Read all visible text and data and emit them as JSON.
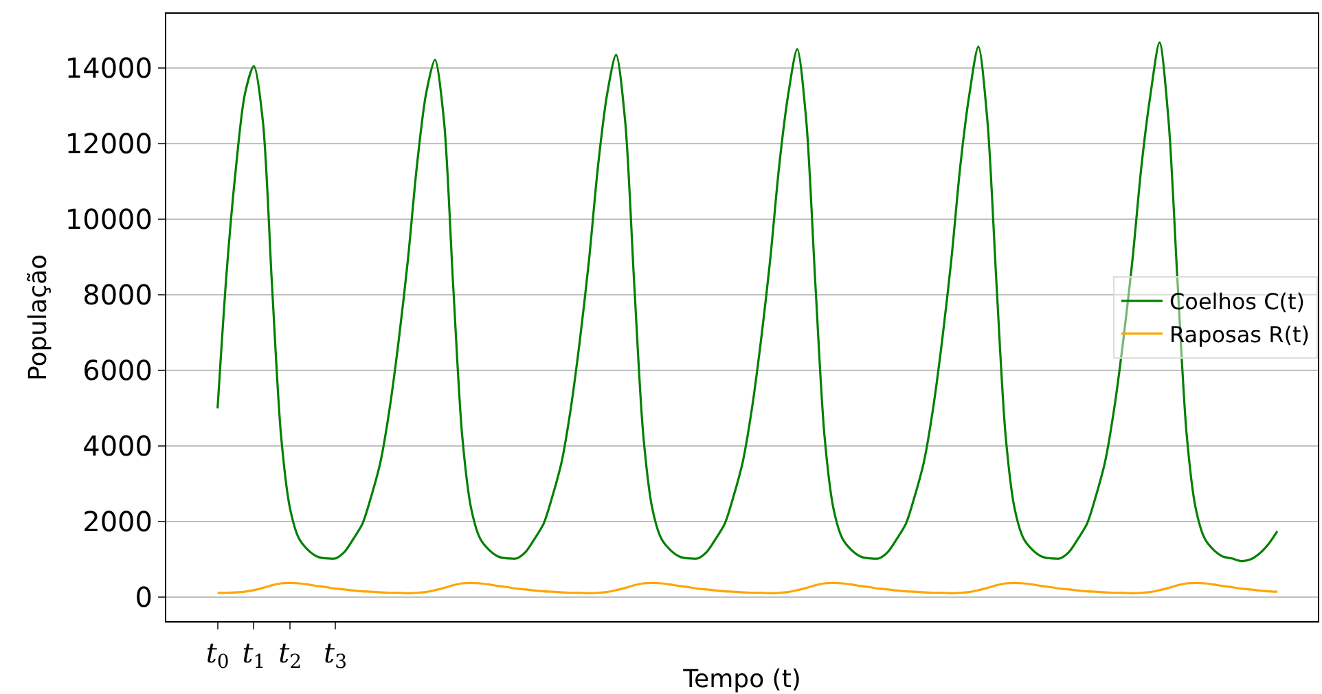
{
  "chart_data": {
    "type": "line",
    "xlabel": "Tempo (t)",
    "ylabel": "População",
    "categories": [
      "t$_{0}$",
      null,
      null,
      null,
      "t$_{1}$",
      null,
      null,
      null,
      "t$_{2}$",
      null,
      null,
      null,
      null,
      "t$_{3}$",
      null,
      null,
      null,
      null,
      null,
      null,
      null,
      null,
      null,
      null,
      null,
      null,
      null,
      null,
      null,
      null,
      null,
      null,
      null,
      null,
      null,
      null,
      null,
      null,
      null,
      null,
      null,
      null,
      null,
      null,
      null,
      null,
      null,
      null,
      null,
      null,
      null,
      null,
      null,
      null,
      null,
      null,
      null,
      null,
      null,
      null,
      null,
      null,
      null,
      null,
      null,
      null,
      null,
      null,
      null,
      null,
      null,
      null,
      null,
      null,
      null,
      null,
      null,
      null,
      null,
      null,
      null,
      null,
      null,
      null,
      null,
      null,
      null,
      null,
      null,
      null,
      null,
      null,
      null,
      null,
      null,
      null,
      null,
      null,
      null,
      null,
      null,
      null,
      null,
      null,
      null,
      null,
      null,
      null,
      null,
      null,
      null,
      null,
      null,
      null,
      null,
      null,
      null,
      null
    ],
    "ylim": [
      -630,
      15440
    ],
    "yticks": [
      0,
      2000,
      4000,
      6000,
      8000,
      10000,
      12000,
      14000
    ],
    "grid": "y",
    "legend": "right",
    "line_style": "solid",
    "marker": "none",
    "series": [
      {
        "name": "Coelhos C(t)",
        "color": "#008000",
        "values": [
          5000,
          8600,
          11300,
          13300,
          14050,
          12600,
          8300,
          4300,
          2350,
          1550,
          1250,
          1080,
          1030,
          1030,
          1200,
          1550,
          1950,
          2700,
          3600,
          5000,
          6800,
          8900,
          11400,
          13300,
          14220,
          12600,
          8300,
          4300,
          2350,
          1550,
          1250,
          1080,
          1030,
          1030,
          1200,
          1550,
          1950,
          2700,
          3600,
          5000,
          6800,
          8900,
          11400,
          13300,
          14350,
          12600,
          8300,
          4300,
          2350,
          1550,
          1250,
          1080,
          1030,
          1030,
          1200,
          1550,
          1950,
          2700,
          3600,
          5000,
          6800,
          8900,
          11400,
          13300,
          14500,
          12600,
          8300,
          4300,
          2350,
          1550,
          1250,
          1080,
          1030,
          1030,
          1200,
          1550,
          1950,
          2700,
          3600,
          5000,
          6800,
          8900,
          11400,
          13300,
          14570,
          12600,
          8300,
          4300,
          2350,
          1550,
          1250,
          1080,
          1030,
          1030,
          1200,
          1550,
          1950,
          2700,
          3600,
          5000,
          6800,
          8900,
          11400,
          13300,
          14680,
          12600,
          8300,
          4300,
          2350,
          1550,
          1250,
          1080,
          1030,
          960,
          1000,
          1150,
          1400,
          1750
        ]
      },
      {
        "name": "Raposas R(t)",
        "color": "#ffa500",
        "values": [
          120,
          120,
          130,
          150,
          190,
          250,
          320,
          370,
          380,
          370,
          340,
          300,
          270,
          230,
          210,
          180,
          160,
          150,
          130,
          120,
          120,
          110,
          120,
          140,
          190,
          250,
          320,
          370,
          380,
          370,
          340,
          300,
          270,
          230,
          210,
          180,
          160,
          150,
          130,
          120,
          120,
          110,
          120,
          140,
          190,
          250,
          320,
          370,
          380,
          370,
          340,
          300,
          270,
          230,
          210,
          180,
          160,
          150,
          130,
          120,
          120,
          110,
          120,
          140,
          190,
          250,
          320,
          370,
          380,
          370,
          340,
          300,
          270,
          230,
          210,
          180,
          160,
          150,
          130,
          120,
          120,
          110,
          120,
          140,
          190,
          250,
          320,
          370,
          380,
          370,
          340,
          300,
          270,
          230,
          210,
          180,
          160,
          150,
          130,
          120,
          120,
          110,
          120,
          140,
          190,
          250,
          320,
          370,
          380,
          370,
          340,
          300,
          270,
          230,
          210,
          180,
          160,
          150
        ]
      }
    ]
  }
}
